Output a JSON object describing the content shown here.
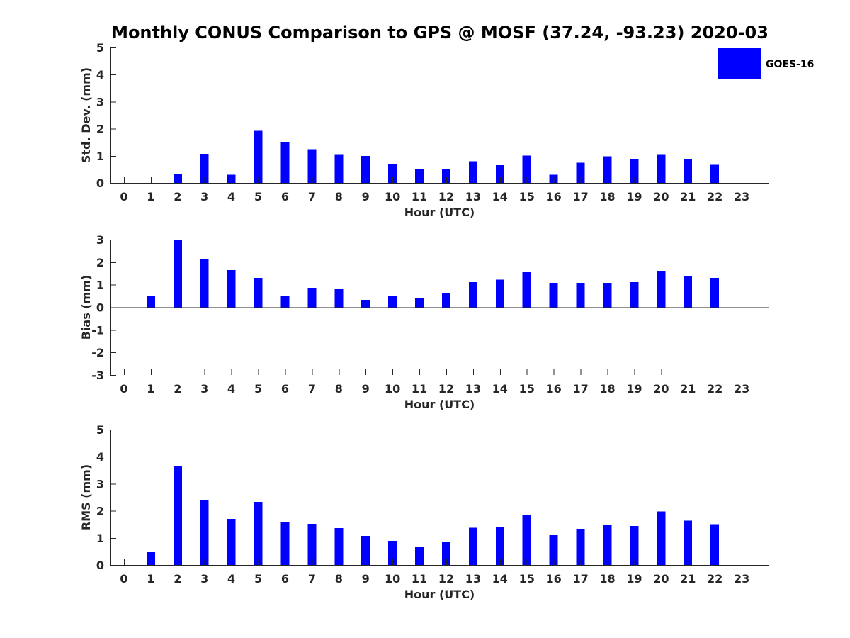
{
  "chart_data": {
    "title": "Monthly CONUS Comparison to GPS @ MOSF (37.24, -93.23) 2020-03",
    "legend": {
      "placement": "top-right",
      "entries": [
        {
          "label": "GOES-16",
          "color": "#0000ff"
        }
      ]
    },
    "bar_color": "#0000ff",
    "panels": [
      {
        "type": "bar",
        "ylabel": "Std. Dev. (mm)",
        "xlabel": "Hour (UTC)",
        "ylim": [
          0,
          5
        ],
        "yticks": [
          0,
          1,
          2,
          3,
          4,
          5
        ],
        "categories": [
          "0",
          "1",
          "2",
          "3",
          "4",
          "5",
          "6",
          "7",
          "8",
          "9",
          "10",
          "11",
          "12",
          "13",
          "14",
          "15",
          "16",
          "17",
          "18",
          "19",
          "20",
          "21",
          "22",
          "23"
        ],
        "series": [
          {
            "name": "GOES-16",
            "values": [
              null,
              null,
              0.33,
              1.07,
              0.3,
              1.93,
              1.5,
              1.24,
              1.06,
              1.0,
              0.7,
              0.52,
              0.52,
              0.8,
              0.65,
              1.01,
              0.3,
              0.75,
              0.98,
              0.88,
              1.06,
              0.88,
              0.67,
              null
            ]
          }
        ]
      },
      {
        "type": "bar",
        "ylabel": "Bias (mm)",
        "xlabel": "Hour (UTC)",
        "ylim": [
          -3,
          3
        ],
        "yticks": [
          -3,
          -2,
          -1,
          0,
          1,
          2,
          3
        ],
        "categories": [
          "0",
          "1",
          "2",
          "3",
          "4",
          "5",
          "6",
          "7",
          "8",
          "9",
          "10",
          "11",
          "12",
          "13",
          "14",
          "15",
          "16",
          "17",
          "18",
          "19",
          "20",
          "21",
          "22",
          "23"
        ],
        "series": [
          {
            "name": "GOES-16",
            "values": [
              null,
              0.5,
              3.0,
              2.15,
              1.65,
              1.3,
              0.52,
              0.87,
              0.83,
              0.33,
              0.52,
              0.43,
              0.65,
              1.12,
              1.23,
              1.55,
              1.08,
              1.08,
              1.08,
              1.12,
              1.62,
              1.37,
              1.3,
              null
            ]
          }
        ]
      },
      {
        "type": "bar",
        "ylabel": "RMS (mm)",
        "xlabel": "Hour (UTC)",
        "ylim": [
          0,
          5
        ],
        "yticks": [
          0,
          1,
          2,
          3,
          4,
          5
        ],
        "categories": [
          "0",
          "1",
          "2",
          "3",
          "4",
          "5",
          "6",
          "7",
          "8",
          "9",
          "10",
          "11",
          "12",
          "13",
          "14",
          "15",
          "16",
          "17",
          "18",
          "19",
          "20",
          "21",
          "22",
          "23"
        ],
        "series": [
          {
            "name": "GOES-16",
            "values": [
              null,
              0.5,
              3.65,
              2.4,
              1.7,
              2.33,
              1.57,
              1.52,
              1.36,
              1.07,
              0.89,
              0.68,
              0.84,
              1.37,
              1.39,
              1.86,
              1.13,
              1.34,
              1.47,
              1.44,
              1.97,
              1.63,
              1.5,
              null
            ]
          }
        ]
      }
    ]
  }
}
